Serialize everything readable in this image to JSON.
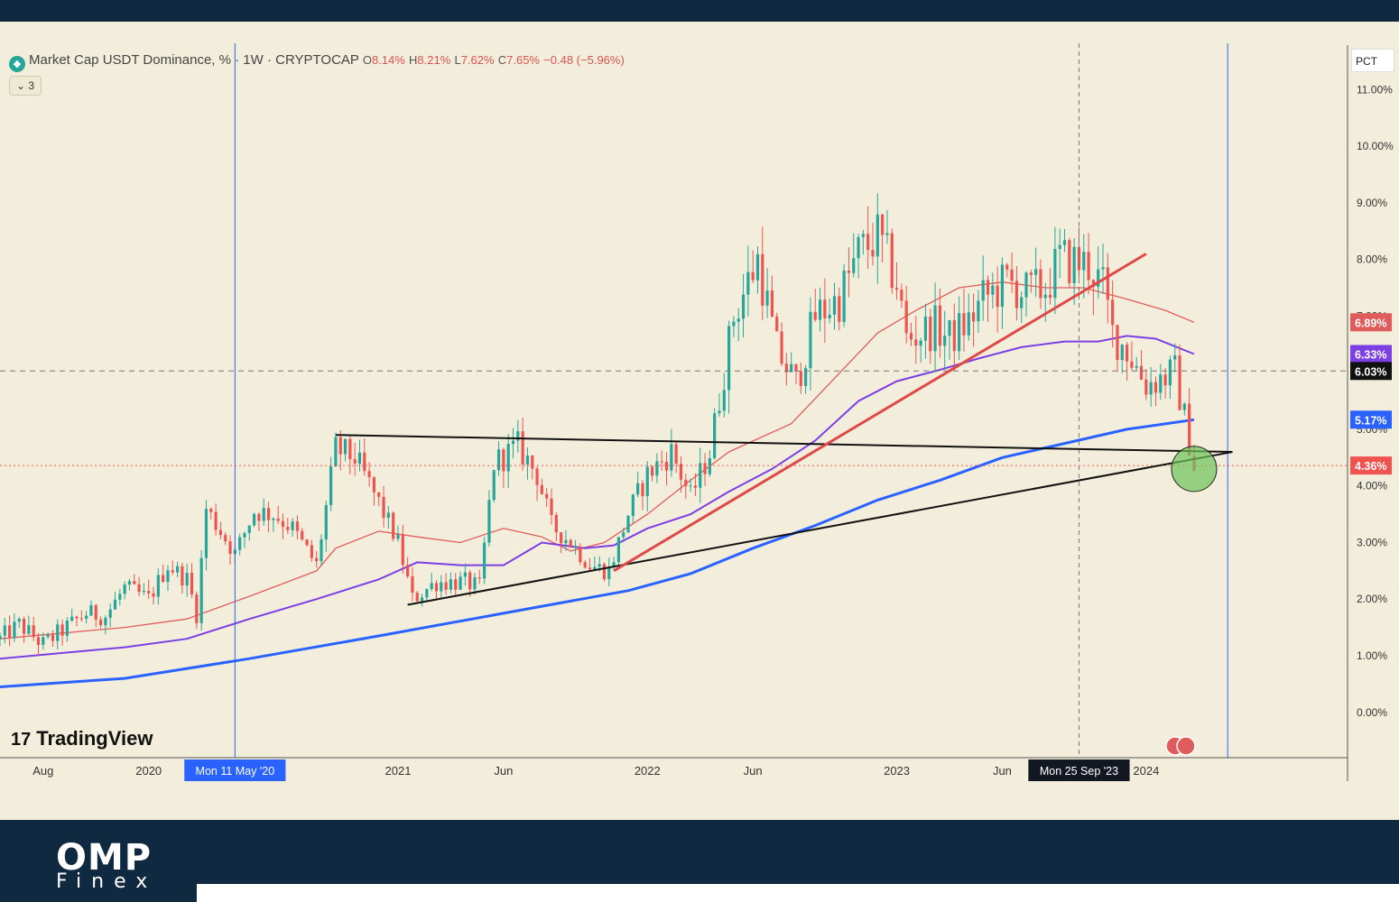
{
  "legend": {
    "symbol": "Market Cap USDT Dominance, % · 1W · CRYPTOCAP",
    "open_label": "O",
    "open": "8.14%",
    "high_label": "H",
    "high": "8.21%",
    "low_label": "L",
    "low": "7.62%",
    "close_label": "C",
    "close": "7.65%",
    "change": "−0.48 (−5.96%)"
  },
  "indicator_count": "3",
  "scale_mode": "PCT",
  "watermark": "TradingView",
  "footer": {
    "brand": "OMP",
    "brand_sub": "Finex"
  },
  "colors": {
    "background": "#f3eedb",
    "candle_up": "#26a69a",
    "candle_down": "#ef5350",
    "ma_red": "#e05b5b",
    "ma_purple": "#7b3fe4",
    "ma_blue": "#2962ff",
    "trendline": "#111111",
    "trendline_red": "#e04848",
    "highlight": "#6cc35b"
  },
  "chart_data": {
    "type": "candlestick",
    "title": "Market Cap USDT Dominance, % · 1W · CRYPTOCAP",
    "y_unit": "%",
    "y_ticks": [
      "0.00%",
      "1.00%",
      "2.00%",
      "3.00%",
      "4.00%",
      "5.00%",
      "6.00%",
      "7.00%",
      "8.00%",
      "9.00%",
      "10.00%",
      "11.00%"
    ],
    "y_range": [
      -0.8,
      12.2
    ],
    "x_ticks": [
      "Aug",
      "2020",
      "2021",
      "Jun",
      "2022",
      "Jun",
      "2023",
      "Jun",
      "2024"
    ],
    "x_range": [
      "2019-06-03",
      "2024-10-21"
    ],
    "cursor_labels": [
      {
        "date": "2020-05-11",
        "label": "Mon 11 May '20"
      },
      {
        "date": "2023-09-25",
        "label": "Mon 25 Sep '23"
      }
    ],
    "right_vertical_line": "2024-04-29",
    "price_labels": [
      {
        "value": 6.89,
        "text": "6.89%",
        "color": "#e05b5b"
      },
      {
        "value": 6.33,
        "text": "6.33%",
        "color": "#7b3fe4"
      },
      {
        "value": 6.03,
        "text": "6.03%",
        "color": "#111111"
      },
      {
        "value": 5.17,
        "text": "5.17%",
        "color": "#2962ff"
      },
      {
        "value": 4.36,
        "text": "4.36%",
        "color": "#ef5350"
      }
    ],
    "horizontal_lines": [
      {
        "value": 6.03,
        "style": "dashed",
        "color": "#777777"
      },
      {
        "value": 4.36,
        "style": "dotted",
        "color": "#ef5350"
      }
    ],
    "trendlines": [
      {
        "name": "resistance",
        "from": [
          "2020-10-05",
          4.9
        ],
        "to": [
          "2024-05-06",
          4.6
        ],
        "color": "#111111"
      },
      {
        "name": "support",
        "from": [
          "2021-01-18",
          1.9
        ],
        "to": [
          "2024-05-06",
          4.6
        ],
        "color": "#111111"
      },
      {
        "name": "breakdown",
        "from": [
          "2021-11-15",
          2.5
        ],
        "to": [
          "2024-01-01",
          8.1
        ],
        "color": "#e04848"
      }
    ],
    "highlight_circle": {
      "date": "2024-03-11",
      "value": 4.3
    },
    "moving_averages": [
      {
        "color": "#e05b5b",
        "points": [
          [
            "2019-06-03",
            1.3
          ],
          [
            "2019-12-02",
            1.5
          ],
          [
            "2020-03-02",
            1.65
          ],
          [
            "2020-06-01",
            2.05
          ],
          [
            "2020-09-07",
            2.5
          ],
          [
            "2020-10-05",
            2.9
          ],
          [
            "2020-12-07",
            3.2
          ],
          [
            "2021-02-01",
            3.1
          ],
          [
            "2021-04-05",
            3.0
          ],
          [
            "2021-06-07",
            3.25
          ],
          [
            "2021-08-02",
            3.1
          ],
          [
            "2021-09-13",
            2.85
          ],
          [
            "2021-11-01",
            3.0
          ],
          [
            "2022-01-03",
            3.5
          ],
          [
            "2022-03-07",
            4.1
          ],
          [
            "2022-05-02",
            4.6
          ],
          [
            "2022-08-01",
            5.1
          ],
          [
            "2022-10-03",
            5.9
          ],
          [
            "2022-12-05",
            6.7
          ],
          [
            "2023-01-30",
            7.1
          ],
          [
            "2023-04-03",
            7.5
          ],
          [
            "2023-06-05",
            7.6
          ],
          [
            "2023-08-07",
            7.5
          ],
          [
            "2023-10-02",
            7.5
          ],
          [
            "2023-12-04",
            7.3
          ],
          [
            "2024-01-29",
            7.1
          ],
          [
            "2024-03-11",
            6.89
          ]
        ]
      },
      {
        "color": "#7b3fe4",
        "points": [
          [
            "2019-06-03",
            0.95
          ],
          [
            "2019-12-02",
            1.15
          ],
          [
            "2020-03-02",
            1.3
          ],
          [
            "2020-06-01",
            1.65
          ],
          [
            "2020-09-07",
            2.0
          ],
          [
            "2020-12-07",
            2.35
          ],
          [
            "2021-02-01",
            2.65
          ],
          [
            "2021-04-05",
            2.6
          ],
          [
            "2021-06-07",
            2.6
          ],
          [
            "2021-08-02",
            3.0
          ],
          [
            "2021-10-04",
            2.9
          ],
          [
            "2021-11-15",
            2.95
          ],
          [
            "2022-01-03",
            3.25
          ],
          [
            "2022-03-07",
            3.5
          ],
          [
            "2022-05-02",
            3.9
          ],
          [
            "2022-07-04",
            4.3
          ],
          [
            "2022-09-05",
            4.8
          ],
          [
            "2022-11-07",
            5.5
          ],
          [
            "2023-01-02",
            5.85
          ],
          [
            "2023-03-06",
            6.05
          ],
          [
            "2023-05-01",
            6.25
          ],
          [
            "2023-07-03",
            6.45
          ],
          [
            "2023-09-04",
            6.55
          ],
          [
            "2023-10-23",
            6.55
          ],
          [
            "2023-12-04",
            6.65
          ],
          [
            "2024-01-15",
            6.6
          ],
          [
            "2024-03-11",
            6.33
          ]
        ]
      },
      {
        "color": "#2962ff",
        "points": [
          [
            "2019-06-03",
            0.45
          ],
          [
            "2019-12-02",
            0.6
          ],
          [
            "2020-06-01",
            0.95
          ],
          [
            "2020-12-07",
            1.35
          ],
          [
            "2021-06-07",
            1.75
          ],
          [
            "2021-12-06",
            2.15
          ],
          [
            "2022-03-07",
            2.45
          ],
          [
            "2022-06-06",
            2.9
          ],
          [
            "2022-09-05",
            3.3
          ],
          [
            "2022-12-05",
            3.75
          ],
          [
            "2023-03-06",
            4.1
          ],
          [
            "2023-06-05",
            4.5
          ],
          [
            "2023-09-04",
            4.75
          ],
          [
            "2023-12-04",
            5.0
          ],
          [
            "2024-03-11",
            5.17
          ]
        ]
      }
    ],
    "candle_path": [
      [
        "2019-06-03",
        1.3
      ],
      [
        "2019-07-01",
        1.55
      ],
      [
        "2019-08-05",
        1.2
      ],
      [
        "2019-09-02",
        1.45
      ],
      [
        "2019-10-07",
        1.75
      ],
      [
        "2019-11-04",
        1.7
      ],
      [
        "2019-12-02",
        2.2
      ],
      [
        "2020-01-06",
        2.0
      ],
      [
        "2020-02-03",
        2.6
      ],
      [
        "2020-03-02",
        2.35
      ],
      [
        "2020-03-16",
        1.75
      ],
      [
        "2020-03-30",
        3.6
      ],
      [
        "2020-05-11",
        2.8
      ],
      [
        "2020-06-08",
        3.55
      ],
      [
        "2020-07-06",
        3.5
      ],
      [
        "2020-08-03",
        3.25
      ],
      [
        "2020-09-07",
        2.6
      ],
      [
        "2020-10-05",
        4.65
      ],
      [
        "2020-11-02",
        4.5
      ],
      [
        "2020-12-07",
        3.7
      ],
      [
        "2021-01-04",
        3.0
      ],
      [
        "2021-01-25",
        2.0
      ],
      [
        "2021-03-01",
        2.3
      ],
      [
        "2021-04-12",
        2.3
      ],
      [
        "2021-05-03",
        2.2
      ],
      [
        "2021-05-24",
        4.4
      ],
      [
        "2021-06-28",
        4.7
      ],
      [
        "2021-07-26",
        4.2
      ],
      [
        "2021-08-16",
        3.3
      ],
      [
        "2021-09-13",
        3.0
      ],
      [
        "2021-10-11",
        2.6
      ],
      [
        "2021-11-08",
        2.5
      ],
      [
        "2021-12-06",
        3.5
      ],
      [
        "2022-01-03",
        4.2
      ],
      [
        "2022-02-07",
        4.6
      ],
      [
        "2022-03-07",
        3.8
      ],
      [
        "2022-04-04",
        4.6
      ],
      [
        "2022-05-09",
        7.0
      ],
      [
        "2022-06-13",
        8.0
      ],
      [
        "2022-07-11",
        6.4
      ],
      [
        "2022-08-08",
        5.8
      ],
      [
        "2022-09-05",
        7.0
      ],
      [
        "2022-10-10",
        7.3
      ],
      [
        "2022-11-07",
        8.1
      ],
      [
        "2022-12-05",
        8.4
      ],
      [
        "2023-01-02",
        7.6
      ],
      [
        "2023-01-16",
        6.6
      ],
      [
        "2023-02-27",
        6.8
      ],
      [
        "2023-03-20",
        6.6
      ],
      [
        "2023-04-17",
        6.9
      ],
      [
        "2023-05-08",
        7.3
      ],
      [
        "2023-06-12",
        7.6
      ],
      [
        "2023-07-10",
        7.4
      ],
      [
        "2023-08-07",
        7.5
      ],
      [
        "2023-08-28",
        8.0
      ],
      [
        "2023-10-09",
        7.9
      ],
      [
        "2023-10-30",
        7.5
      ],
      [
        "2023-11-13",
        6.7
      ],
      [
        "2023-12-04",
        6.4
      ],
      [
        "2024-01-01",
        5.8
      ],
      [
        "2024-01-22",
        5.9
      ],
      [
        "2024-02-12",
        6.0
      ],
      [
        "2024-02-26",
        5.2
      ],
      [
        "2024-03-11",
        4.36
      ]
    ]
  }
}
